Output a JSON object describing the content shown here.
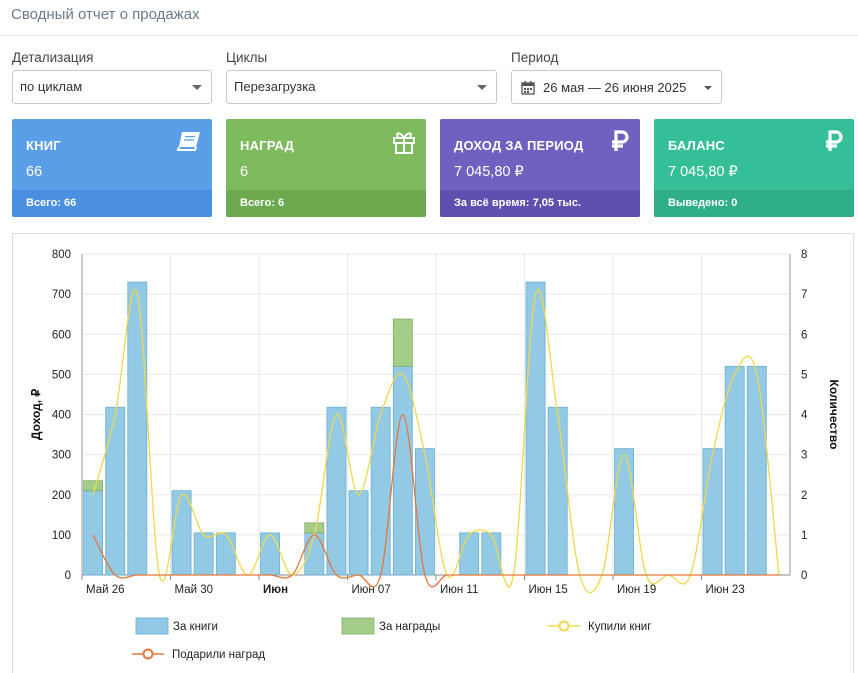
{
  "page": {
    "title": "Сводный отчет о продажах"
  },
  "filters": {
    "detail": {
      "label": "Детализация",
      "value": "по циклам"
    },
    "cycles": {
      "label": "Циклы",
      "value": "Перезагрузка"
    },
    "period": {
      "label": "Период",
      "value": "26 мая — 26 июня 2025"
    }
  },
  "cards": [
    {
      "title": "КНИГ",
      "value": "66",
      "footer": "Всего: 66",
      "icon": "book-icon",
      "color": "#5b9ee8",
      "footer_color": "#4a8fe0"
    },
    {
      "title": "НАГРАД",
      "value": "6",
      "footer": "Всего: 6",
      "icon": "gift-icon",
      "color": "#7dbb5e",
      "footer_color": "#6daa4f"
    },
    {
      "title": "ДОХОД ЗА ПЕРИОД",
      "value": "7 045,80 ₽",
      "footer": "За всё время: 7,05 тыс.",
      "icon": "ruble-icon",
      "color": "#7060c0",
      "footer_color": "#5f50b0"
    },
    {
      "title": "БАЛАНС",
      "value": "7 045,80 ₽",
      "footer": "Выведено: 0",
      "icon": "ruble-icon",
      "color": "#35bf98",
      "footer_color": "#2fae89"
    }
  ],
  "chart_data": {
    "type": "bar",
    "ylabel": "Доход, ₽",
    "y2label": "Количество",
    "ylim": [
      0,
      800
    ],
    "y2lim": [
      0,
      8
    ],
    "yticks": [
      "0",
      "100",
      "200",
      "300",
      "400",
      "500",
      "600",
      "700",
      "800"
    ],
    "y2ticks": [
      "0",
      "1",
      "2",
      "3",
      "4",
      "5",
      "6",
      "7",
      "8"
    ],
    "grid": true,
    "legend_position": "bottom",
    "days": 32,
    "xticks": [
      {
        "day": 0,
        "label": "Май 26",
        "bold": false
      },
      {
        "day": 4,
        "label": "Май 30",
        "bold": false
      },
      {
        "day": 8,
        "label": "Июн",
        "bold": true
      },
      {
        "day": 12,
        "label": "Июн 07",
        "bold": false
      },
      {
        "day": 16,
        "label": "Июн 11",
        "bold": false
      },
      {
        "day": 20,
        "label": "Июн 15",
        "bold": false
      },
      {
        "day": 24,
        "label": "Июн 19",
        "bold": false
      },
      {
        "day": 28,
        "label": "Июн 23",
        "bold": false
      }
    ],
    "series": [
      {
        "name": "За книги",
        "kind": "bar",
        "axis": "left",
        "color": "#92c9e4",
        "values": [
          210,
          418,
          730,
          0,
          210,
          105,
          105,
          0,
          105,
          0,
          105,
          418,
          210,
          418,
          520,
          315,
          0,
          105,
          105,
          0,
          730,
          418,
          0,
          0,
          315,
          0,
          0,
          0,
          315,
          520,
          520,
          0
        ]
      },
      {
        "name": "За награды",
        "kind": "bar",
        "axis": "left",
        "color": "#a5cd8a",
        "values": [
          25,
          0,
          0,
          0,
          0,
          0,
          0,
          0,
          0,
          0,
          25,
          0,
          0,
          0,
          118,
          0,
          0,
          0,
          0,
          0,
          0,
          0,
          0,
          0,
          0,
          0,
          0,
          0,
          0,
          0,
          0,
          0
        ]
      },
      {
        "name": "Купили книг",
        "kind": "line",
        "axis": "right",
        "color": "#f0d84a",
        "values": [
          2,
          4,
          7,
          0,
          2,
          1,
          1,
          0,
          1,
          0,
          1,
          4,
          2,
          4,
          5,
          3,
          0,
          1,
          1,
          0,
          7,
          4,
          0,
          0,
          3,
          0,
          0,
          0,
          3,
          5,
          5,
          0
        ]
      },
      {
        "name": "Подарили наград",
        "kind": "line",
        "axis": "right",
        "color": "#e5773a",
        "values": [
          1,
          0,
          0,
          0,
          0,
          0,
          0,
          0,
          0,
          0,
          1,
          0,
          0,
          0,
          4,
          0,
          0,
          0,
          0,
          0,
          0,
          0,
          0,
          0,
          0,
          0,
          0,
          0,
          0,
          0,
          0,
          0
        ]
      }
    ]
  }
}
